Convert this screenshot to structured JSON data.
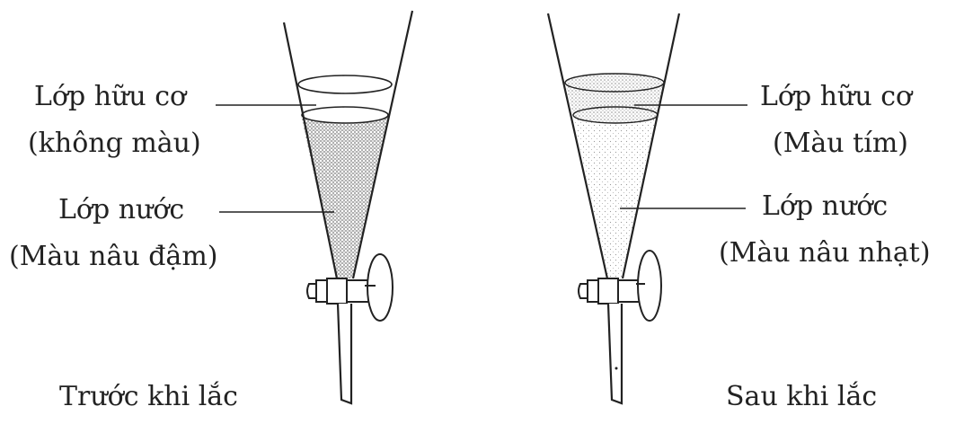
{
  "before": {
    "organic_layer_label": "Lớp hữu cơ",
    "organic_layer_color": "(không màu)",
    "water_layer_label": "Lớp nước",
    "water_layer_color": "(Màu nâu đậm)",
    "caption": "Trước khi lắc"
  },
  "after": {
    "organic_layer_label": "Lớp hữu cơ",
    "organic_layer_color": "(Màu tím)",
    "water_layer_label": "Lớp nước",
    "water_layer_color": "(Màu nâu nhạt)",
    "caption": "Sau khi lắc"
  },
  "colors": {
    "line": "#222222",
    "dark_brown_water": "#9a9a9a",
    "light_brown_water": "#d2d2d2",
    "purple_organic": "#b9b9b9"
  }
}
